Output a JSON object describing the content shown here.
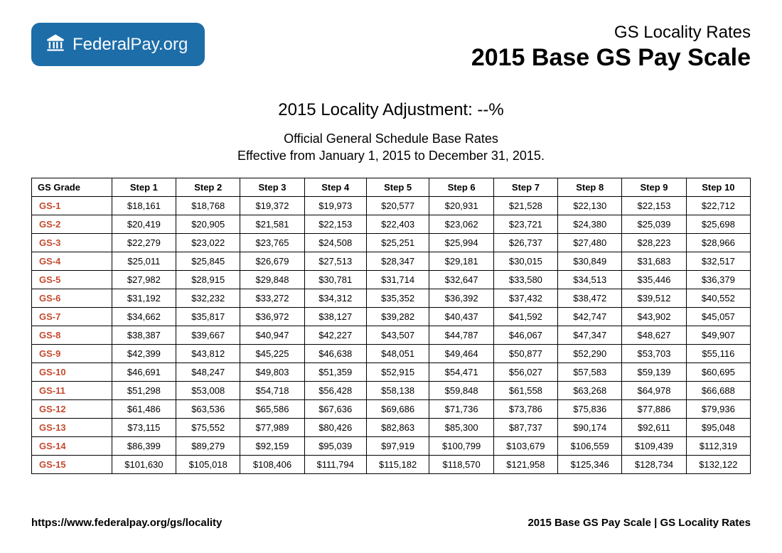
{
  "logo": {
    "name_bold": "Federal",
    "name_thin": "Pay.org"
  },
  "header": {
    "small_title": "GS Locality Rates",
    "big_title": "2015 Base GS Pay Scale"
  },
  "subtitle": {
    "adjustment": "2015 Locality Adjustment: --%",
    "desc1": "Official General Schedule Base Rates",
    "desc2": "Effective from January 1, 2015 to December 31, 2015."
  },
  "table": {
    "columns": [
      "GS Grade",
      "Step 1",
      "Step 2",
      "Step 3",
      "Step 4",
      "Step 5",
      "Step 6",
      "Step 7",
      "Step 8",
      "Step 9",
      "Step 10"
    ],
    "rows": [
      [
        "GS-1",
        "$18,161",
        "$18,768",
        "$19,372",
        "$19,973",
        "$20,577",
        "$20,931",
        "$21,528",
        "$22,130",
        "$22,153",
        "$22,712"
      ],
      [
        "GS-2",
        "$20,419",
        "$20,905",
        "$21,581",
        "$22,153",
        "$22,403",
        "$23,062",
        "$23,721",
        "$24,380",
        "$25,039",
        "$25,698"
      ],
      [
        "GS-3",
        "$22,279",
        "$23,022",
        "$23,765",
        "$24,508",
        "$25,251",
        "$25,994",
        "$26,737",
        "$27,480",
        "$28,223",
        "$28,966"
      ],
      [
        "GS-4",
        "$25,011",
        "$25,845",
        "$26,679",
        "$27,513",
        "$28,347",
        "$29,181",
        "$30,015",
        "$30,849",
        "$31,683",
        "$32,517"
      ],
      [
        "GS-5",
        "$27,982",
        "$28,915",
        "$29,848",
        "$30,781",
        "$31,714",
        "$32,647",
        "$33,580",
        "$34,513",
        "$35,446",
        "$36,379"
      ],
      [
        "GS-6",
        "$31,192",
        "$32,232",
        "$33,272",
        "$34,312",
        "$35,352",
        "$36,392",
        "$37,432",
        "$38,472",
        "$39,512",
        "$40,552"
      ],
      [
        "GS-7",
        "$34,662",
        "$35,817",
        "$36,972",
        "$38,127",
        "$39,282",
        "$40,437",
        "$41,592",
        "$42,747",
        "$43,902",
        "$45,057"
      ],
      [
        "GS-8",
        "$38,387",
        "$39,667",
        "$40,947",
        "$42,227",
        "$43,507",
        "$44,787",
        "$46,067",
        "$47,347",
        "$48,627",
        "$49,907"
      ],
      [
        "GS-9",
        "$42,399",
        "$43,812",
        "$45,225",
        "$46,638",
        "$48,051",
        "$49,464",
        "$50,877",
        "$52,290",
        "$53,703",
        "$55,116"
      ],
      [
        "GS-10",
        "$46,691",
        "$48,247",
        "$49,803",
        "$51,359",
        "$52,915",
        "$54,471",
        "$56,027",
        "$57,583",
        "$59,139",
        "$60,695"
      ],
      [
        "GS-11",
        "$51,298",
        "$53,008",
        "$54,718",
        "$56,428",
        "$58,138",
        "$59,848",
        "$61,558",
        "$63,268",
        "$64,978",
        "$66,688"
      ],
      [
        "GS-12",
        "$61,486",
        "$63,536",
        "$65,586",
        "$67,636",
        "$69,686",
        "$71,736",
        "$73,786",
        "$75,836",
        "$77,886",
        "$79,936"
      ],
      [
        "GS-13",
        "$73,115",
        "$75,552",
        "$77,989",
        "$80,426",
        "$82,863",
        "$85,300",
        "$87,737",
        "$90,174",
        "$92,611",
        "$95,048"
      ],
      [
        "GS-14",
        "$86,399",
        "$89,279",
        "$92,159",
        "$95,039",
        "$97,919",
        "$100,799",
        "$103,679",
        "$106,559",
        "$109,439",
        "$112,319"
      ],
      [
        "GS-15",
        "$101,630",
        "$105,018",
        "$108,406",
        "$111,794",
        "$115,182",
        "$118,570",
        "$121,958",
        "$125,346",
        "$128,734",
        "$132,122"
      ]
    ]
  },
  "footer": {
    "url": "https://www.federalpay.org/gs/locality",
    "right": "2015 Base GS Pay Scale | GS Locality Rates"
  },
  "style": {
    "badge_bg": "#1d6da8",
    "grade_color": "#c44a2e",
    "border_color": "#000000",
    "background": "#ffffff"
  }
}
